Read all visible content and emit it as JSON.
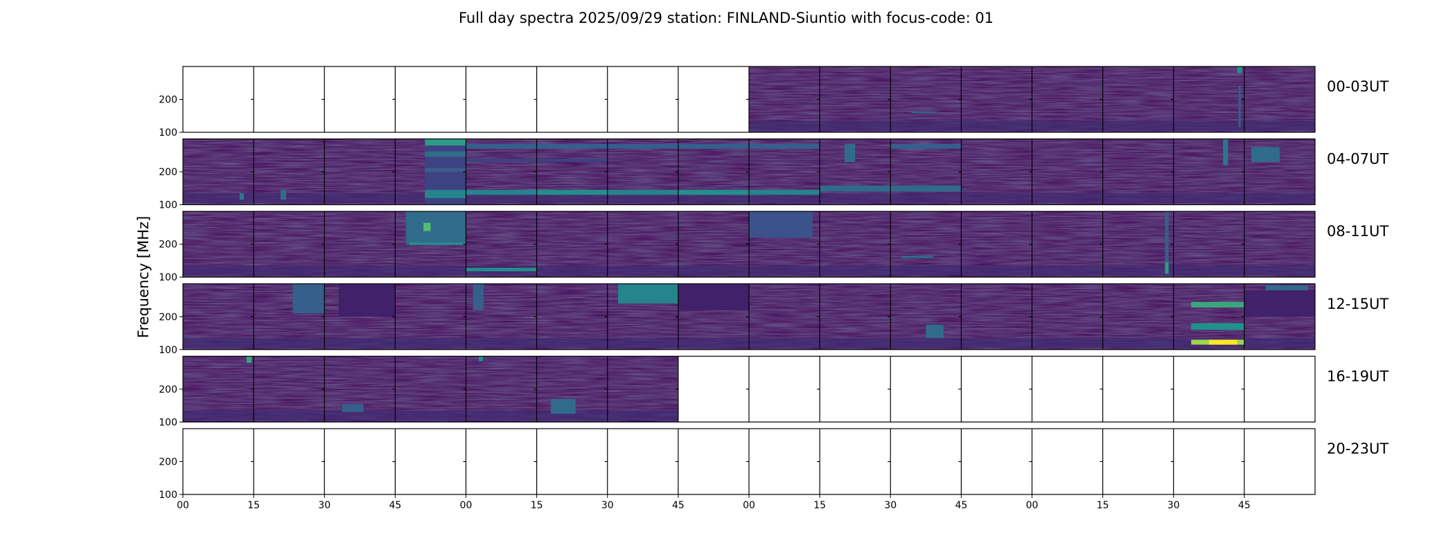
{
  "chart_data": {
    "type": "heatmap",
    "title": "Full day spectra 2025/09/29 station: FINLAND-Siuntio with focus-code: 01",
    "ylabel": "Frequency [MHz]",
    "ylim": [
      100,
      300
    ],
    "ytick_labels": [
      "100",
      "200"
    ],
    "xtick_labels": [
      "00",
      "15",
      "30",
      "45",
      "00",
      "15",
      "30",
      "45",
      "00",
      "15",
      "30",
      "45",
      "00",
      "15",
      "30",
      "45"
    ],
    "minutes_per_panel": 15,
    "panels_per_row": 16,
    "colormap": [
      "#440154",
      "#3b528b",
      "#21918c",
      "#5ec962",
      "#fde725"
    ],
    "rows": [
      {
        "label": "00-03UT",
        "data_available": [
          false,
          false,
          false,
          false,
          false,
          false,
          false,
          false,
          true,
          true,
          true,
          true,
          true,
          true,
          true,
          true
        ],
        "features": [
          {
            "panel": 10,
            "f_low": 158,
            "f_high": 163,
            "x0": 0.3,
            "x1": 0.65,
            "level": 0.35
          },
          {
            "panel": 14,
            "f_low": 280,
            "f_high": 300,
            "x0": 0.9,
            "x1": 0.97,
            "level": 0.5
          },
          {
            "panel": 14,
            "f_low": 115,
            "f_high": 240,
            "x0": 0.92,
            "x1": 0.95,
            "level": 0.3
          }
        ]
      },
      {
        "label": "04-07UT",
        "data_available": [
          true,
          true,
          true,
          true,
          true,
          true,
          true,
          true,
          true,
          true,
          true,
          true,
          true,
          true,
          true,
          true
        ],
        "features": [
          {
            "panel": 0,
            "f_low": 115,
            "f_high": 135,
            "x0": 0.8,
            "x1": 0.86,
            "level": 0.4
          },
          {
            "panel": 1,
            "f_low": 115,
            "f_high": 145,
            "x0": 0.38,
            "x1": 0.46,
            "level": 0.35
          },
          {
            "panel": 3,
            "f_low": 100,
            "f_high": 300,
            "x0": 0.42,
            "x1": 1.0,
            "level": 0.2
          },
          {
            "panel": 3,
            "f_low": 280,
            "f_high": 300,
            "x0": 0.42,
            "x1": 1.0,
            "level": 0.55
          },
          {
            "panel": 3,
            "f_low": 245,
            "f_high": 262,
            "x0": 0.42,
            "x1": 1.0,
            "level": 0.35
          },
          {
            "panel": 3,
            "f_low": 200,
            "f_high": 212,
            "x0": 0.42,
            "x1": 1.0,
            "level": 0.3
          },
          {
            "panel": 3,
            "f_low": 125,
            "f_high": 137,
            "x0": 0.42,
            "x1": 1.0,
            "level": 0.8
          },
          {
            "panel": 3,
            "f_low": 120,
            "f_high": 145,
            "x0": 0.42,
            "x1": 1.0,
            "level": 0.45
          },
          {
            "panel": 4,
            "f_low": 130,
            "f_high": 145,
            "x0": 0.0,
            "x1": 1.0,
            "level": 0.45
          },
          {
            "panel": 4,
            "f_low": 270,
            "f_high": 285,
            "x0": 0.0,
            "x1": 1.0,
            "level": 0.3
          },
          {
            "panel": 4,
            "f_low": 230,
            "f_high": 240,
            "x0": 0.0,
            "x1": 1.0,
            "level": 0.2
          },
          {
            "panel": 5,
            "f_low": 130,
            "f_high": 145,
            "x0": 0.0,
            "x1": 1.0,
            "level": 0.5
          },
          {
            "panel": 5,
            "f_low": 270,
            "f_high": 285,
            "x0": 0.0,
            "x1": 1.0,
            "level": 0.3
          },
          {
            "panel": 5,
            "f_low": 230,
            "f_high": 240,
            "x0": 0.0,
            "x1": 1.0,
            "level": 0.2
          },
          {
            "panel": 6,
            "f_low": 130,
            "f_high": 145,
            "x0": 0.0,
            "x1": 1.0,
            "level": 0.45
          },
          {
            "panel": 6,
            "f_low": 270,
            "f_high": 285,
            "x0": 0.0,
            "x1": 1.0,
            "level": 0.3
          },
          {
            "panel": 7,
            "f_low": 130,
            "f_high": 145,
            "x0": 0.0,
            "x1": 1.0,
            "level": 0.5
          },
          {
            "panel": 7,
            "f_low": 270,
            "f_high": 285,
            "x0": 0.0,
            "x1": 1.0,
            "level": 0.3
          },
          {
            "panel": 8,
            "f_low": 130,
            "f_high": 145,
            "x0": 0.0,
            "x1": 1.0,
            "level": 0.45
          },
          {
            "panel": 8,
            "f_low": 270,
            "f_high": 285,
            "x0": 0.0,
            "x1": 1.0,
            "level": 0.3
          },
          {
            "panel": 9,
            "f_low": 140,
            "f_high": 158,
            "x0": 0.0,
            "x1": 1.0,
            "level": 0.35
          },
          {
            "panel": 9,
            "f_low": 230,
            "f_high": 285,
            "x0": 0.35,
            "x1": 0.5,
            "level": 0.35
          },
          {
            "panel": 10,
            "f_low": 140,
            "f_high": 158,
            "x0": 0.0,
            "x1": 1.0,
            "level": 0.35
          },
          {
            "panel": 10,
            "f_low": 270,
            "f_high": 285,
            "x0": 0.0,
            "x1": 1.0,
            "level": 0.3
          },
          {
            "panel": 14,
            "f_low": 220,
            "f_high": 300,
            "x0": 0.7,
            "x1": 0.77,
            "level": 0.4
          },
          {
            "panel": 15,
            "f_low": 230,
            "f_high": 275,
            "x0": 0.1,
            "x1": 0.5,
            "level": 0.35
          }
        ]
      },
      {
        "label": "08-11UT",
        "data_available": [
          true,
          true,
          true,
          true,
          true,
          true,
          true,
          true,
          true,
          true,
          true,
          true,
          true,
          true,
          true,
          true
        ],
        "features": [
          {
            "panel": 3,
            "f_low": 200,
            "f_high": 300,
            "x0": 0.15,
            "x1": 1.0,
            "level": 0.35
          },
          {
            "panel": 3,
            "f_low": 240,
            "f_high": 265,
            "x0": 0.4,
            "x1": 0.5,
            "level": 0.7
          },
          {
            "panel": 3,
            "f_low": 198,
            "f_high": 205,
            "x0": 0.2,
            "x1": 1.0,
            "level": 0.5
          },
          {
            "panel": 4,
            "f_low": 118,
            "f_high": 128,
            "x0": 0.0,
            "x1": 1.0,
            "level": 0.5
          },
          {
            "panel": 8,
            "f_low": 220,
            "f_high": 300,
            "x0": 0.0,
            "x1": 0.9,
            "level": 0.25
          },
          {
            "panel": 10,
            "f_low": 158,
            "f_high": 165,
            "x0": 0.15,
            "x1": 0.6,
            "level": 0.35
          },
          {
            "panel": 13,
            "f_low": 110,
            "f_high": 300,
            "x0": 0.88,
            "x1": 0.93,
            "level": 0.3
          },
          {
            "panel": 13,
            "f_low": 110,
            "f_high": 145,
            "x0": 0.88,
            "x1": 0.93,
            "level": 0.55
          }
        ]
      },
      {
        "label": "12-15UT",
        "data_available": [
          true,
          true,
          true,
          true,
          true,
          true,
          true,
          true,
          true,
          true,
          true,
          true,
          true,
          true,
          true,
          true
        ],
        "features": [
          {
            "panel": 1,
            "f_low": 210,
            "f_high": 300,
            "x0": 0.55,
            "x1": 1.0,
            "level": 0.3
          },
          {
            "panel": 2,
            "f_low": 200,
            "f_high": 300,
            "x0": 0.2,
            "x1": 1.0,
            "level": 0.1
          },
          {
            "panel": 4,
            "f_low": 220,
            "f_high": 300,
            "x0": 0.1,
            "x1": 0.25,
            "level": 0.3
          },
          {
            "panel": 6,
            "f_low": 240,
            "f_high": 300,
            "x0": 0.15,
            "x1": 1.0,
            "level": 0.45
          },
          {
            "panel": 7,
            "f_low": 220,
            "f_high": 300,
            "x0": 0.0,
            "x1": 1.0,
            "level": 0.1
          },
          {
            "panel": 10,
            "f_low": 135,
            "f_high": 175,
            "x0": 0.5,
            "x1": 0.75,
            "level": 0.35
          },
          {
            "panel": 14,
            "f_low": 228,
            "f_high": 245,
            "x0": 0.25,
            "x1": 1.0,
            "level": 0.6
          },
          {
            "panel": 14,
            "f_low": 160,
            "f_high": 180,
            "x0": 0.25,
            "x1": 1.0,
            "level": 0.5
          },
          {
            "panel": 14,
            "f_low": 115,
            "f_high": 130,
            "x0": 0.25,
            "x1": 1.0,
            "level": 0.85
          },
          {
            "panel": 14,
            "f_low": 115,
            "f_high": 130,
            "x0": 0.5,
            "x1": 0.9,
            "level": 1.0
          },
          {
            "panel": 15,
            "f_low": 280,
            "f_high": 295,
            "x0": 0.3,
            "x1": 0.9,
            "level": 0.35
          },
          {
            "panel": 15,
            "f_low": 200,
            "f_high": 280,
            "x0": 0.0,
            "x1": 1.0,
            "level": 0.1
          }
        ]
      },
      {
        "label": "16-19UT",
        "data_available": [
          true,
          true,
          true,
          true,
          true,
          true,
          true,
          false,
          false,
          false,
          false,
          false,
          false,
          false,
          false,
          false
        ],
        "features": [
          {
            "panel": 0,
            "f_low": 280,
            "f_high": 300,
            "x0": 0.9,
            "x1": 0.97,
            "level": 0.6
          },
          {
            "panel": 2,
            "f_low": 130,
            "f_high": 155,
            "x0": 0.25,
            "x1": 0.55,
            "level": 0.3
          },
          {
            "panel": 4,
            "f_low": 285,
            "f_high": 300,
            "x0": 0.18,
            "x1": 0.24,
            "level": 0.5
          },
          {
            "panel": 5,
            "f_low": 125,
            "f_high": 170,
            "x0": 0.2,
            "x1": 0.55,
            "level": 0.35
          }
        ]
      },
      {
        "label": "20-23UT",
        "data_available": [
          false,
          false,
          false,
          false,
          false,
          false,
          false,
          false,
          false,
          false,
          false,
          false,
          false,
          false,
          false,
          false
        ],
        "features": []
      }
    ]
  }
}
